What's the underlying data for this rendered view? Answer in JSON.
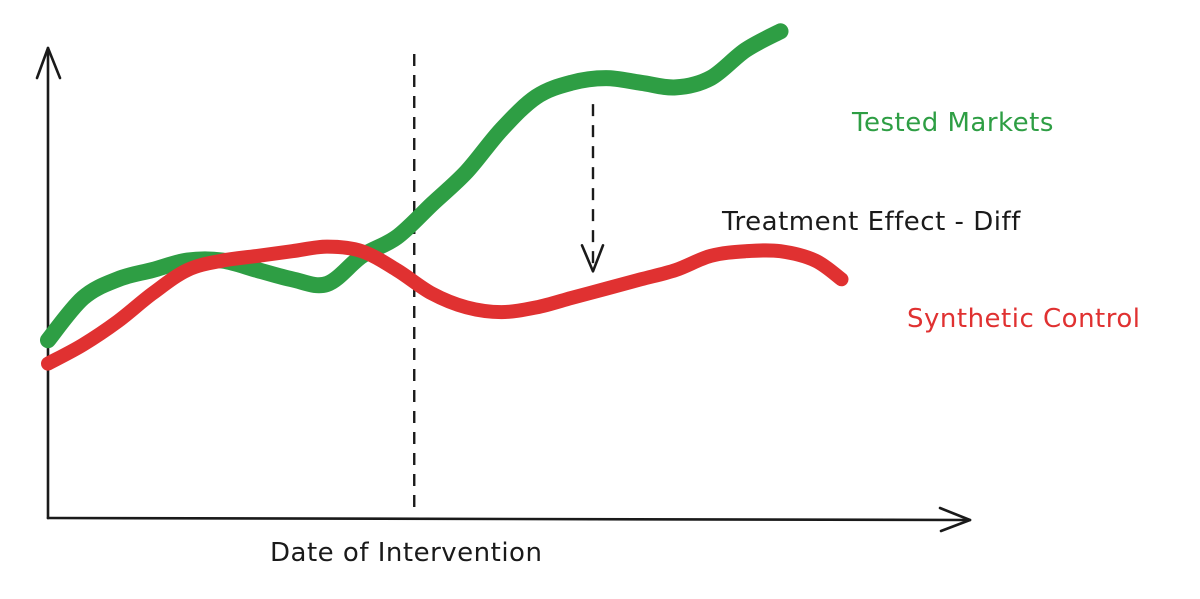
{
  "chart_data": {
    "type": "line",
    "title": "",
    "xlabel": "Date of Intervention",
    "ylabel": "",
    "grid": false,
    "legend": "inline labels at right end of each series",
    "xlim": [
      0,
      100
    ],
    "ylim": [
      0,
      100
    ],
    "intervention_x": 42,
    "series": [
      {
        "name": "Tested Markets",
        "color": "#2e9e44",
        "x": [
          0,
          4,
          8,
          12,
          16,
          20,
          24,
          28,
          32,
          36,
          40,
          44,
          48,
          52,
          56,
          60,
          64,
          68,
          72,
          76,
          80,
          84
        ],
        "values": [
          38,
          47,
          51,
          53,
          55,
          55,
          53,
          51,
          50,
          56,
          60,
          67,
          74,
          83,
          90,
          93,
          94,
          93,
          92,
          94,
          100,
          104
        ]
      },
      {
        "name": "Synthetic Control",
        "color": "#e03131",
        "x": [
          0,
          4,
          8,
          12,
          16,
          20,
          24,
          28,
          32,
          36,
          40,
          44,
          48,
          52,
          56,
          60,
          64,
          68,
          72,
          76,
          80,
          84,
          88,
          91
        ],
        "values": [
          33,
          37,
          42,
          48,
          53,
          55,
          56,
          57,
          58,
          57,
          53,
          48,
          45,
          44,
          45,
          47,
          49,
          51,
          53,
          56,
          57,
          57,
          55,
          51
        ]
      }
    ],
    "annotations": [
      {
        "text": "Treatment Effect - Diff",
        "x": 62.5,
        "from_y": 91,
        "to_y": 51
      }
    ]
  },
  "labels": {
    "tested_markets": "Tested Markets",
    "synthetic_control": "Synthetic Control",
    "treatment_effect": "Treatment Effect - Diff",
    "x_axis": "Date of Intervention"
  },
  "colors": {
    "green": "#2e9e44",
    "red": "#e03131",
    "ink": "#1a1a1a"
  }
}
